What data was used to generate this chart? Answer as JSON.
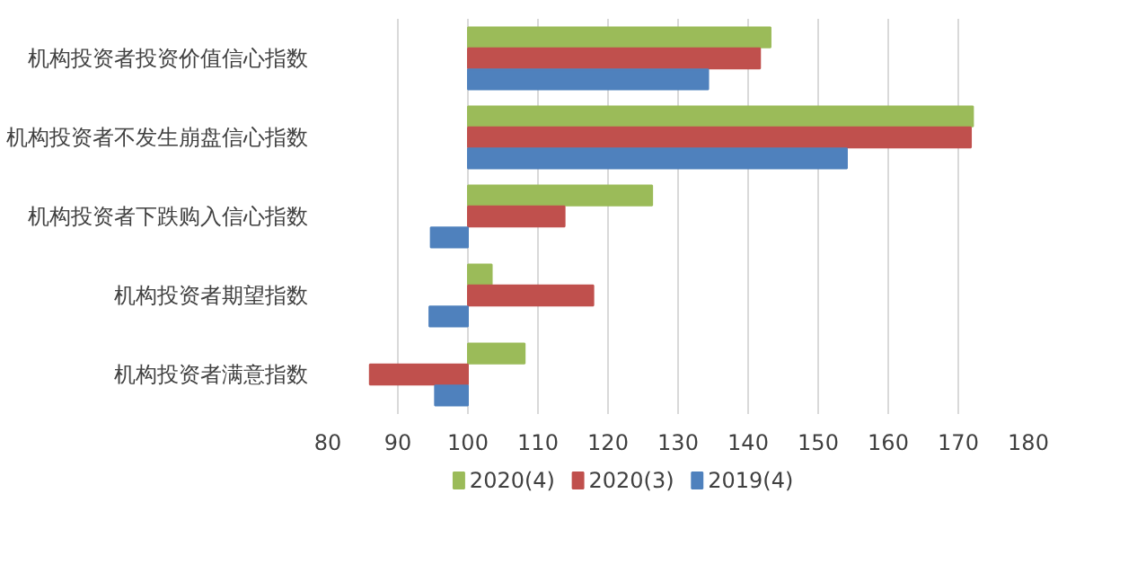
{
  "chart_data": {
    "type": "bar",
    "orientation": "horizontal",
    "categories": [
      "机构投资者投资价值信心指数",
      "机构投资者不发生崩盘信心指数",
      "机构投资者下跌购入信心指数",
      "机构投资者期望指数",
      "机构投资者满意指数"
    ],
    "series": [
      {
        "name": "2020(4)",
        "color": "#9bbb59",
        "base": [
          100,
          100,
          100,
          100,
          100
        ],
        "values": [
          43.2,
          72.1,
          26.3,
          3.4,
          8.1
        ]
      },
      {
        "name": "2020(3)",
        "color": "#c0504d",
        "base": [
          100,
          100,
          100,
          100,
          100
        ],
        "values": [
          41.7,
          71.8,
          13.8,
          17.9,
          -14
        ]
      },
      {
        "name": "2019(4)",
        "color": "#4f81bd",
        "base": [
          100,
          100,
          100,
          100,
          100
        ],
        "values": [
          34.3,
          54.1,
          -5.3,
          -5.5,
          -4.7
        ]
      }
    ],
    "xlim": [
      80,
      180
    ],
    "xticks": [
      80,
      90,
      100,
      110,
      120,
      130,
      140,
      150,
      160,
      170,
      180
    ],
    "grid": "x",
    "legend": "bottom"
  }
}
